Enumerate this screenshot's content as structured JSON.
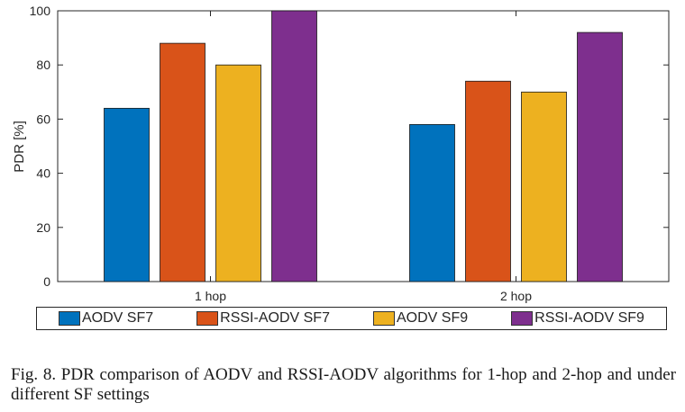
{
  "chart_data": {
    "type": "bar",
    "categories": [
      "1 hop",
      "2 hop"
    ],
    "series": [
      {
        "name": "AODV SF7",
        "values": [
          64,
          58
        ],
        "color": "#0072BD"
      },
      {
        "name": "RSSI-AODV SF7",
        "values": [
          88,
          74
        ],
        "color": "#D95319"
      },
      {
        "name": "AODV SF9",
        "values": [
          80,
          70
        ],
        "color": "#EDB120"
      },
      {
        "name": "RSSI-AODV SF9",
        "values": [
          100,
          92
        ],
        "color": "#7E2F8E"
      }
    ],
    "ylabel": "PDR [%]",
    "xlabel": "",
    "ylim": [
      0,
      100
    ],
    "yticks": [
      0,
      20,
      40,
      60,
      80,
      100
    ],
    "grid": false,
    "legend_position": "bottom"
  },
  "caption": "Fig. 8.  PDR comparison of AODV and RSSI-AODV algorithms for 1-hop and 2-hop and under different SF settings"
}
